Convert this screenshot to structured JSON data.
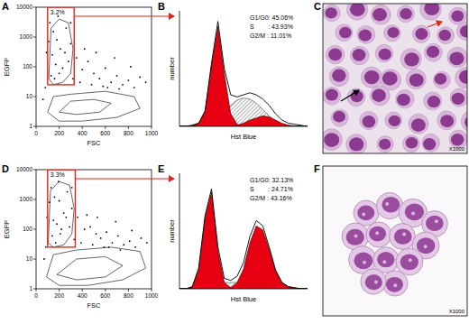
{
  "chart_data": [
    {
      "type": "scatter",
      "title": "A",
      "xlabel": "FSC",
      "ylabel": "EGFP",
      "log": "y",
      "xlim": [
        0,
        1000
      ],
      "xticks": [
        0,
        200,
        400,
        600,
        800,
        1000
      ],
      "ylim": [
        1,
        10000
      ],
      "yticks": [
        1,
        10,
        100,
        1000,
        10000
      ],
      "gate": {
        "x": [
          100,
          330
        ],
        "y": [
          25,
          10000
        ],
        "label": "3.2%",
        "color": "#e3241b"
      },
      "series": [
        {
          "type": "scatter",
          "color": "#000000",
          "marker": "dot",
          "x": [
            120,
            150,
            180,
            210,
            140,
            260,
            300,
            170,
            230,
            200,
            280,
            130,
            320,
            110,
            250,
            190,
            160,
            300,
            350,
            400,
            450,
            500,
            550,
            600,
            650,
            700,
            750,
            800,
            850,
            900,
            380,
            420,
            480,
            520,
            620,
            680,
            720,
            820,
            950,
            580,
            60,
            80,
            90
          ],
          "values": [
            3000,
            1500,
            800,
            400,
            250,
            2000,
            600,
            120,
            90,
            60,
            150,
            50,
            40,
            700,
            300,
            5000,
            40,
            3000,
            200,
            80,
            150,
            60,
            40,
            90,
            30,
            50,
            25,
            35,
            20,
            45,
            30,
            400,
            25,
            300,
            20,
            200,
            18,
            100,
            30,
            22,
            8,
            20,
            300
          ]
        },
        {
          "type": "line",
          "color": "#000000",
          "x": [
            110,
            150,
            230,
            300,
            320,
            280,
            200,
            130,
            110
          ],
          "values": [
            40,
            25,
            30,
            60,
            400,
            3000,
            4000,
            2000,
            40
          ]
        },
        {
          "type": "line",
          "color": "#000000",
          "x": [
            100,
            200,
            400,
            700,
            900,
            850,
            600,
            300,
            150,
            100
          ],
          "values": [
            3,
            1.5,
            1.5,
            2,
            4,
            10,
            15,
            12,
            10,
            3
          ]
        },
        {
          "type": "line",
          "color": "#000000",
          "x": [
            200,
            350,
            550,
            650,
            500,
            300,
            200
          ],
          "values": [
            3,
            2.5,
            3,
            6,
            8,
            7,
            3
          ]
        }
      ]
    },
    {
      "type": "histogram",
      "title": "B",
      "xlabel": "Hst Blue",
      "ylabel": "number",
      "tick_labels": false,
      "xlim": [
        0,
        100
      ],
      "ylim": [
        0,
        110
      ],
      "annotations": [
        "G1/G0: 45.06%",
        "S        : 43.93%",
        "G2/M : 11.01%"
      ],
      "x": [
        0,
        5,
        10,
        15,
        20,
        25,
        30,
        35,
        40,
        45,
        50,
        55,
        60,
        65,
        70,
        75,
        80,
        85,
        90,
        95,
        100
      ],
      "series": [
        {
          "type": "area",
          "color": "#444444",
          "line_style": "hatched",
          "values": [
            0,
            0,
            0,
            0,
            0,
            2,
            5,
            12,
            20,
            25,
            27,
            26,
            22,
            16,
            10,
            5,
            2,
            1,
            0,
            0,
            0
          ]
        },
        {
          "type": "area",
          "color": "#e60012",
          "values": [
            0,
            0,
            1,
            3,
            14,
            58,
            95,
            50,
            12,
            2,
            0,
            0,
            0,
            0,
            0,
            0,
            0,
            0,
            0,
            0,
            0
          ]
        },
        {
          "type": "area",
          "color": "#e60012",
          "values": [
            0,
            0,
            0,
            0,
            0,
            0,
            0,
            0,
            0,
            1,
            3,
            6,
            8,
            10,
            9,
            6,
            3,
            1,
            0,
            0,
            0
          ]
        },
        {
          "type": "line",
          "color": "#000000",
          "values": [
            0,
            0,
            1,
            3,
            15,
            60,
            100,
            55,
            30,
            28,
            30,
            32,
            30,
            26,
            20,
            12,
            6,
            3,
            2,
            1,
            0
          ]
        }
      ]
    },
    {
      "type": "scatter",
      "title": "D",
      "xlabel": "FSC",
      "ylabel": "EGFP",
      "log": "y",
      "xlim": [
        0,
        1000
      ],
      "xticks": [
        0,
        200,
        400,
        600,
        800,
        1000
      ],
      "ylim": [
        1,
        10000
      ],
      "yticks": [
        1,
        10,
        100,
        1000,
        10000
      ],
      "gate": {
        "x": [
          100,
          340
        ],
        "y": [
          25,
          10000
        ],
        "label": "3.3%",
        "color": "#e3241b"
      },
      "series": [
        {
          "type": "scatter",
          "color": "#000000",
          "marker": "dot",
          "x": [
            130,
            160,
            200,
            240,
            150,
            270,
            310,
            180,
            220,
            210,
            290,
            140,
            330,
            115,
            260,
            195,
            170,
            310,
            360,
            420,
            470,
            520,
            560,
            610,
            660,
            710,
            760,
            810,
            860,
            910,
            390,
            440,
            490,
            530,
            630,
            690,
            730,
            830,
            960,
            590,
            70,
            85,
            95
          ],
          "values": [
            2500,
            1200,
            900,
            350,
            200,
            1800,
            500,
            150,
            100,
            70,
            120,
            60,
            45,
            800,
            250,
            4000,
            35,
            2500,
            250,
            100,
            120,
            70,
            50,
            80,
            35,
            60,
            30,
            40,
            25,
            50,
            35,
            300,
            30,
            250,
            25,
            180,
            20,
            90,
            35,
            25,
            10,
            25,
            250
          ]
        },
        {
          "type": "line",
          "color": "#000000",
          "x": [
            105,
            150,
            240,
            310,
            330,
            290,
            200,
            125,
            105
          ],
          "values": [
            35,
            25,
            30,
            70,
            500,
            3000,
            4000,
            2000,
            35
          ]
        },
        {
          "type": "line",
          "color": "#000000",
          "x": [
            90,
            200,
            450,
            750,
            950,
            900,
            650,
            350,
            150,
            90
          ],
          "values": [
            2.5,
            1.3,
            1.3,
            2,
            5,
            18,
            25,
            20,
            14,
            2.5
          ]
        },
        {
          "type": "line",
          "color": "#000000",
          "x": [
            180,
            350,
            600,
            750,
            600,
            350,
            180
          ],
          "values": [
            3,
            2,
            2.5,
            6,
            12,
            10,
            3
          ]
        }
      ]
    },
    {
      "type": "histogram",
      "title": "E",
      "xlabel": "Hst Blue",
      "ylabel": "number",
      "tick_labels": false,
      "xlim": [
        0,
        100
      ],
      "ylim": [
        0,
        110
      ],
      "annotations": [
        "G1/G0: 32.13%",
        "S        : 24.71%",
        "G2/M : 43.16%"
      ],
      "x": [
        0,
        5,
        10,
        15,
        20,
        25,
        30,
        35,
        40,
        45,
        50,
        55,
        60,
        65,
        70,
        75,
        80,
        85,
        90,
        95,
        100
      ],
      "series": [
        {
          "type": "area",
          "color": "#444444",
          "line_style": "hatched",
          "values": [
            0,
            0,
            0,
            0,
            1,
            3,
            5,
            6,
            6,
            6,
            6,
            6,
            5,
            4,
            2,
            1,
            0,
            0,
            0,
            0,
            0
          ]
        },
        {
          "type": "area",
          "color": "#e60012",
          "values": [
            0,
            0,
            2,
            18,
            68,
            92,
            36,
            6,
            1,
            0,
            0,
            0,
            0,
            0,
            0,
            0,
            0,
            0,
            0,
            0,
            0
          ]
        },
        {
          "type": "area",
          "color": "#e60012",
          "values": [
            0,
            0,
            0,
            0,
            0,
            0,
            0,
            0,
            1,
            6,
            19,
            44,
            60,
            56,
            38,
            17,
            6,
            2,
            1,
            0,
            0
          ]
        },
        {
          "type": "line",
          "color": "#000000",
          "values": [
            0,
            0,
            2,
            20,
            70,
            95,
            40,
            10,
            8,
            12,
            25,
            50,
            65,
            60,
            40,
            18,
            6,
            2,
            1,
            0,
            0
          ]
        }
      ]
    }
  ],
  "images": [
    {
      "title": "C",
      "magnification": "X1000"
    },
    {
      "title": "F",
      "magnification": "X1000"
    }
  ]
}
